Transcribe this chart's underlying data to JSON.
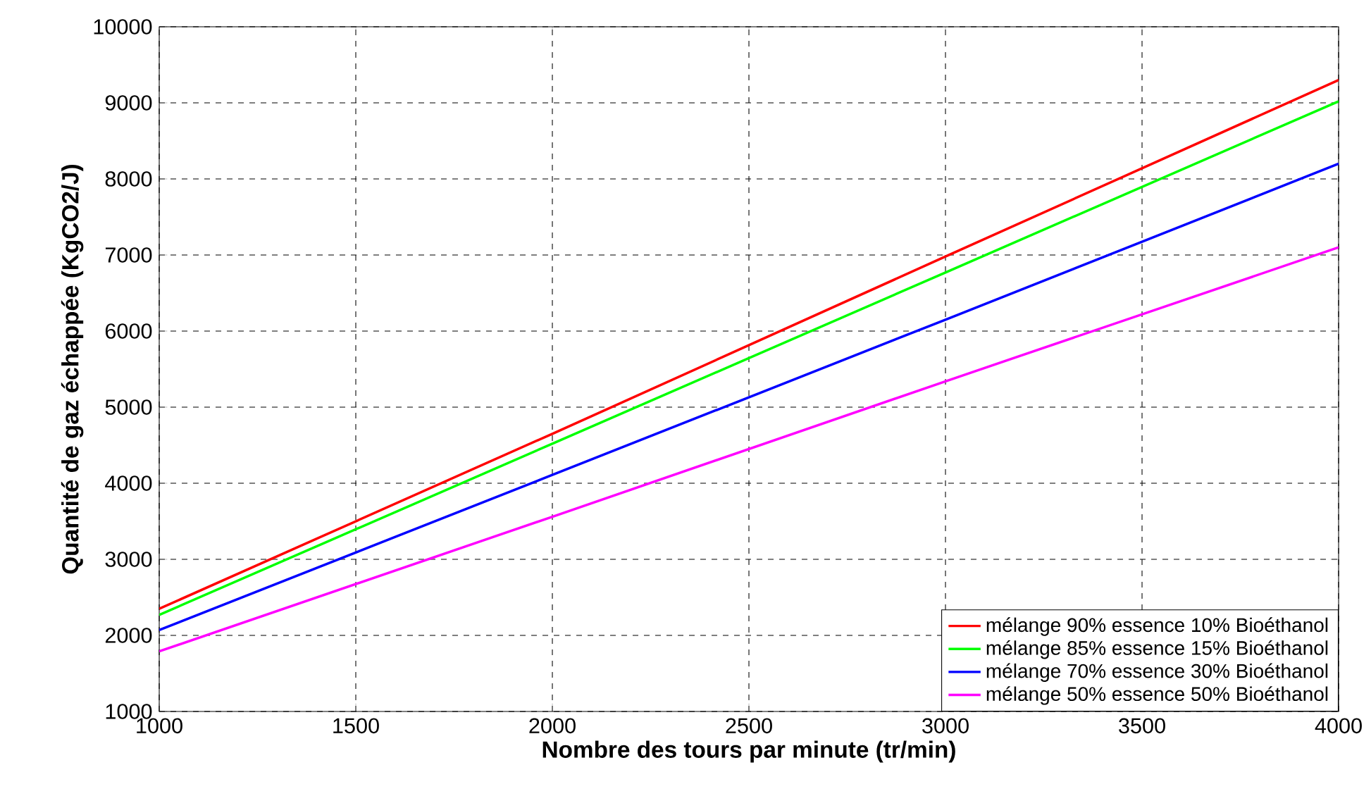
{
  "chart_data": {
    "type": "line",
    "xlabel": "Nombre des tours par minute (tr/min)",
    "ylabel": "Quantité de gaz échappée (KgCO2/J)",
    "xlim": [
      1000,
      4000
    ],
    "xticks": [
      1000,
      1500,
      2000,
      2500,
      3000,
      3500,
      4000
    ],
    "ylim": [
      1000,
      10000
    ],
    "yticks": [
      1000,
      2000,
      3000,
      4000,
      5000,
      6000,
      7000,
      8000,
      9000,
      10000
    ],
    "grid": true,
    "legend": "bottom right",
    "marker": "none",
    "line_style": "solid",
    "x": [
      1000,
      2000,
      3000,
      4000
    ],
    "series": [
      {
        "name": "mélange 90% essence 10% Bioéthanol",
        "color": "#ff0000",
        "values": [
          2350,
          4650,
          6980,
          9300
        ]
      },
      {
        "name": "mélange 85% essence 15% Bioéthanol",
        "color": "#00ff00",
        "values": [
          2270,
          4520,
          6770,
          9020
        ]
      },
      {
        "name": "mélange 70% essence 30% Bioéthanol",
        "color": "#0000ff",
        "values": [
          2070,
          4110,
          6150,
          8200
        ]
      },
      {
        "name": "mélange 50% essence 50% Bioéthanol",
        "color": "#ff00ff",
        "values": [
          1790,
          3560,
          5340,
          7100
        ]
      }
    ]
  }
}
